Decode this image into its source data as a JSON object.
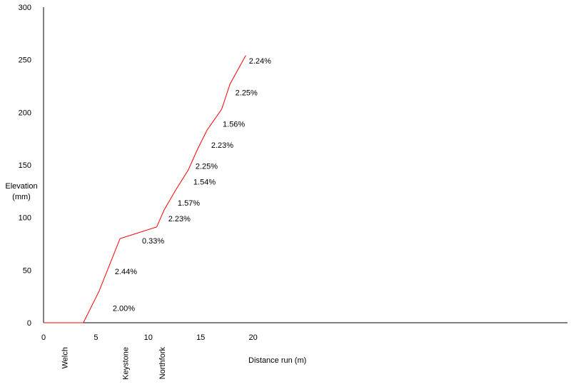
{
  "chart_data": {
    "type": "line",
    "title": "",
    "xlabel": "Distance run (m)",
    "ylabel": [
      "Elevation",
      "(mm)"
    ],
    "xlim": [
      0,
      50
    ],
    "ylim": [
      0,
      300
    ],
    "x_ticks": [
      0,
      5,
      10,
      15,
      20
    ],
    "y_ticks": [
      0,
      50,
      100,
      150,
      200,
      250,
      300
    ],
    "legend": "none",
    "grid": false,
    "line_color": "#ff0000",
    "series": [
      {
        "name": "",
        "x": [
          0,
          3.8,
          5.3,
          7.3,
          10.8,
          11.5,
          12.6,
          13.8,
          14.7,
          15.6,
          17.0,
          17.8,
          19.3
        ],
        "y": [
          0,
          0,
          30,
          80,
          91,
          107,
          126,
          145,
          165,
          183,
          203,
          227,
          254
        ]
      }
    ],
    "annotations": [
      {
        "text": "2.00%",
        "x": 6.6,
        "y": 14
      },
      {
        "text": "2.44%",
        "x": 6.8,
        "y": 49
      },
      {
        "text": "0.33%",
        "x": 9.4,
        "y": 78
      },
      {
        "text": "2.23%",
        "x": 11.9,
        "y": 99
      },
      {
        "text": "1.57%",
        "x": 12.8,
        "y": 114
      },
      {
        "text": "1.54%",
        "x": 14.3,
        "y": 134
      },
      {
        "text": "2.25%",
        "x": 14.5,
        "y": 149
      },
      {
        "text": "2.23%",
        "x": 16.0,
        "y": 169
      },
      {
        "text": "1.56%",
        "x": 17.1,
        "y": 189
      },
      {
        "text": "2.25%",
        "x": 18.3,
        "y": 219
      },
      {
        "text": "2.24%",
        "x": 19.6,
        "y": 249
      }
    ],
    "stations": [
      {
        "name": "Welch",
        "x": 2.0
      },
      {
        "name": "Keystone",
        "x": 7.8
      },
      {
        "name": "Northfork",
        "x": 11.3
      }
    ]
  }
}
